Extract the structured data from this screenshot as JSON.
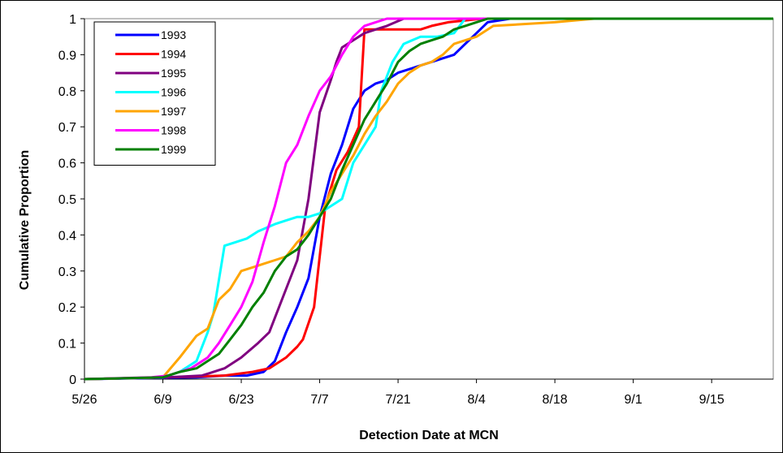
{
  "chart_data": {
    "type": "line",
    "title": "",
    "xlabel": "Detection Date at MCN",
    "ylabel": "Cumulative Proportion",
    "xlim": [
      "5/26",
      "9/26"
    ],
    "ylim": [
      0,
      1
    ],
    "x_ticks": [
      "5/26",
      "6/9",
      "6/23",
      "7/7",
      "7/21",
      "8/4",
      "8/18",
      "9/1",
      "9/15"
    ],
    "y_ticks": [
      "0",
      "0.1",
      "0.2",
      "0.3",
      "0.4",
      "0.5",
      "0.6",
      "0.7",
      "0.8",
      "0.9",
      "1"
    ],
    "grid": false,
    "legend_position": "top-left",
    "series": [
      {
        "name": "1993",
        "color": "#0000ff",
        "x": [
          "5/26",
          "6/15",
          "6/20",
          "6/24",
          "6/27",
          "6/29",
          "7/1",
          "7/3",
          "7/5",
          "7/7",
          "7/9",
          "7/11",
          "7/13",
          "7/15",
          "7/17",
          "7/19",
          "7/21",
          "7/23",
          "7/25",
          "7/27",
          "7/29",
          "7/31",
          "8/2",
          "8/4",
          "8/6",
          "8/10",
          "9/26"
        ],
        "values": [
          0,
          0.005,
          0.01,
          0.01,
          0.02,
          0.05,
          0.13,
          0.2,
          0.28,
          0.45,
          0.57,
          0.65,
          0.75,
          0.8,
          0.82,
          0.83,
          0.85,
          0.86,
          0.87,
          0.88,
          0.89,
          0.9,
          0.93,
          0.96,
          0.99,
          1.0,
          1.0
        ]
      },
      {
        "name": "1994",
        "color": "#ff0000",
        "x": [
          "5/26",
          "6/10",
          "6/20",
          "6/25",
          "6/28",
          "7/1",
          "7/3",
          "7/4",
          "7/6",
          "7/8",
          "7/10",
          "7/12",
          "7/14",
          "7/15",
          "7/16",
          "7/25",
          "7/27",
          "7/30",
          "8/5",
          "9/26"
        ],
        "values": [
          0,
          0.005,
          0.01,
          0.02,
          0.03,
          0.06,
          0.09,
          0.11,
          0.2,
          0.48,
          0.58,
          0.63,
          0.7,
          0.97,
          0.97,
          0.97,
          0.98,
          0.99,
          1.0,
          1.0
        ]
      },
      {
        "name": "1995",
        "color": "#800080",
        "x": [
          "5/26",
          "6/10",
          "6/16",
          "6/20",
          "6/23",
          "6/26",
          "6/28",
          "7/1",
          "7/3",
          "7/5",
          "7/7",
          "7/9",
          "7/10",
          "7/11",
          "7/13",
          "7/14",
          "7/15",
          "7/17",
          "7/19",
          "7/22",
          "9/26"
        ],
        "values": [
          0,
          0.005,
          0.01,
          0.03,
          0.06,
          0.1,
          0.13,
          0.25,
          0.33,
          0.5,
          0.74,
          0.83,
          0.88,
          0.92,
          0.94,
          0.95,
          0.96,
          0.97,
          0.98,
          1.0,
          1.0
        ]
      },
      {
        "name": "1996",
        "color": "#00ffff",
        "x": [
          "5/26",
          "6/9",
          "6/12",
          "6/15",
          "6/17",
          "6/18",
          "6/20",
          "6/22",
          "6/24",
          "6/26",
          "6/29",
          "7/1",
          "7/3",
          "7/5",
          "7/7",
          "7/9",
          "7/11",
          "7/13",
          "7/15",
          "7/17",
          "7/18",
          "7/20",
          "7/22",
          "7/25",
          "7/28",
          "7/31",
          "8/2",
          "9/26"
        ],
        "values": [
          0,
          0.005,
          0.02,
          0.05,
          0.13,
          0.18,
          0.37,
          0.38,
          0.39,
          0.41,
          0.43,
          0.44,
          0.45,
          0.45,
          0.46,
          0.48,
          0.5,
          0.6,
          0.65,
          0.7,
          0.8,
          0.88,
          0.93,
          0.95,
          0.95,
          0.96,
          1.0,
          1.0
        ]
      },
      {
        "name": "1997",
        "color": "#ffa500",
        "x": [
          "5/26",
          "6/9",
          "6/12",
          "6/15",
          "6/17",
          "6/19",
          "6/21",
          "6/23",
          "6/25",
          "6/27",
          "6/29",
          "7/1",
          "7/3",
          "7/5",
          "7/7",
          "7/9",
          "7/11",
          "7/13",
          "7/15",
          "7/17",
          "7/19",
          "7/21",
          "7/23",
          "7/25",
          "7/27",
          "7/29",
          "7/31",
          "8/4",
          "8/7",
          "8/18",
          "8/25",
          "9/26"
        ],
        "values": [
          0,
          0.005,
          0.06,
          0.12,
          0.14,
          0.22,
          0.25,
          0.3,
          0.31,
          0.32,
          0.33,
          0.34,
          0.38,
          0.41,
          0.45,
          0.52,
          0.57,
          0.62,
          0.68,
          0.73,
          0.77,
          0.82,
          0.85,
          0.87,
          0.88,
          0.9,
          0.93,
          0.95,
          0.98,
          0.99,
          1.0,
          1.0
        ]
      },
      {
        "name": "1998",
        "color": "#ff00ff",
        "x": [
          "5/26",
          "6/7",
          "6/10",
          "6/14",
          "6/17",
          "6/19",
          "6/21",
          "6/23",
          "6/25",
          "6/27",
          "6/29",
          "7/1",
          "7/3",
          "7/5",
          "7/7",
          "7/9",
          "7/11",
          "7/13",
          "7/15",
          "7/17",
          "7/19",
          "7/21",
          "9/26"
        ],
        "values": [
          0,
          0.005,
          0.01,
          0.03,
          0.06,
          0.1,
          0.15,
          0.2,
          0.27,
          0.38,
          0.48,
          0.6,
          0.65,
          0.73,
          0.8,
          0.84,
          0.9,
          0.95,
          0.98,
          0.99,
          1.0,
          1.0,
          1.0
        ]
      },
      {
        "name": "1999",
        "color": "#008000",
        "x": [
          "5/26",
          "6/9",
          "6/12",
          "6/15",
          "6/17",
          "6/19",
          "6/21",
          "6/23",
          "6/25",
          "6/27",
          "6/29",
          "7/1",
          "7/3",
          "7/5",
          "7/7",
          "7/9",
          "7/11",
          "7/13",
          "7/15",
          "7/17",
          "7/19",
          "7/21",
          "7/23",
          "7/25",
          "7/27",
          "7/29",
          "7/31",
          "8/2",
          "8/4",
          "8/6",
          "9/26"
        ],
        "values": [
          0,
          0.005,
          0.02,
          0.03,
          0.05,
          0.07,
          0.11,
          0.15,
          0.2,
          0.24,
          0.3,
          0.34,
          0.36,
          0.4,
          0.45,
          0.5,
          0.58,
          0.65,
          0.72,
          0.77,
          0.82,
          0.88,
          0.91,
          0.93,
          0.94,
          0.95,
          0.97,
          0.98,
          0.99,
          1.0,
          1.0
        ]
      }
    ]
  }
}
